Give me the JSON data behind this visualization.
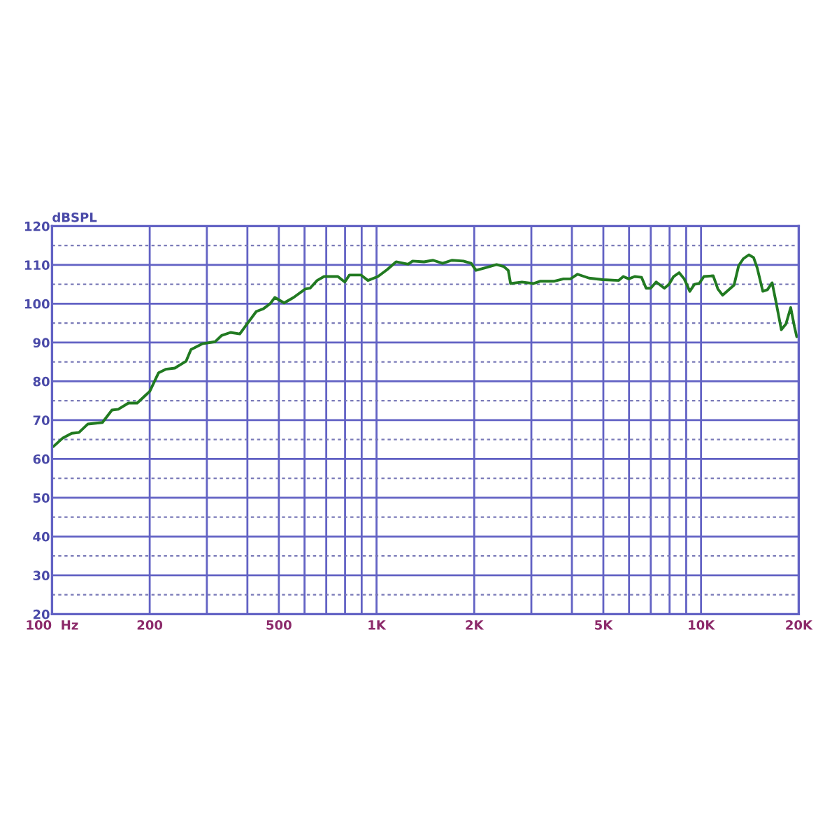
{
  "chart_data": {
    "type": "line",
    "ylabel": "dBSPL",
    "x": [
      101,
      108,
      115,
      121,
      129,
      143,
      153,
      160,
      172,
      183,
      193,
      200,
      213,
      224,
      239,
      259,
      268,
      291,
      318,
      333,
      355,
      379,
      399,
      426,
      448,
      470,
      486,
      519,
      555,
      603,
      624,
      656,
      689,
      760,
      798,
      825,
      895,
      941,
      1010,
      1079,
      1149,
      1251,
      1292,
      1400,
      1494,
      1598,
      1706,
      1852,
      1958,
      2025,
      2150,
      2344,
      2463,
      2546,
      2589,
      2806,
      3041,
      3200,
      3533,
      3768,
      3960,
      4164,
      4516,
      4981,
      5576,
      5760,
      5988,
      6245,
      6558,
      6773,
      6996,
      7273,
      7709,
      7966,
      8232,
      8560,
      8876,
      9234,
      9543,
      9868,
      10200,
      10900,
      11270,
      11650,
      12640,
      13060,
      13500,
      14040,
      14520,
      14900,
      15500,
      16020,
      16560,
      16990,
      17680,
      18270,
      18890,
      19390,
      19720
    ],
    "series": [
      {
        "color": "#217a21",
        "values": [
          63.2,
          65.4,
          66.6,
          66.8,
          69.0,
          69.4,
          72.6,
          72.8,
          74.4,
          74.4,
          76.2,
          77.4,
          82.2,
          83.1,
          83.4,
          85.2,
          88.2,
          89.7,
          90.2,
          91.8,
          92.6,
          92.2,
          94.8,
          98.0,
          98.7,
          100.0,
          101.6,
          100.2,
          101.6,
          103.8,
          104.0,
          106.0,
          107.0,
          107.0,
          105.6,
          107.4,
          107.4,
          106.0,
          107.0,
          108.8,
          110.8,
          110.2,
          111.0,
          110.8,
          111.2,
          110.4,
          111.2,
          111.0,
          110.4,
          108.6,
          109.2,
          110.1,
          109.6,
          108.6,
          105.2,
          105.6,
          105.2,
          105.8,
          105.8,
          106.4,
          106.4,
          107.6,
          106.6,
          106.2,
          106.0,
          107.0,
          106.4,
          107.0,
          106.8,
          104.0,
          104.0,
          105.6,
          104.0,
          105.0,
          107.0,
          108.0,
          106.4,
          103.2,
          105.0,
          105.2,
          107.0,
          107.2,
          103.8,
          102.2,
          104.8,
          109.8,
          111.6,
          112.6,
          111.9,
          109.2,
          103.2,
          103.6,
          105.4,
          100.8,
          93.3,
          94.8,
          99.0,
          94.2,
          91.5
        ]
      }
    ],
    "log": "x",
    "xlim": [
      100,
      20000
    ],
    "ylim": [
      20,
      120
    ],
    "xticks": [
      {
        "value": 100,
        "label": "100  Hz"
      },
      200,
      {
        "value": 300,
        "label": null
      },
      {
        "value": 400,
        "label": null
      },
      500,
      {
        "value": 600,
        "label": null
      },
      {
        "value": 700,
        "label": null
      },
      {
        "value": 800,
        "label": null
      },
      {
        "value": 900,
        "label": null
      },
      {
        "value": 1000,
        "label": "1K"
      },
      {
        "value": 2000,
        "label": "2K"
      },
      {
        "value": 3000,
        "label": null
      },
      {
        "value": 4000,
        "label": null
      },
      {
        "value": 5000,
        "label": "5K"
      },
      {
        "value": 6000,
        "label": null
      },
      {
        "value": 7000,
        "label": null
      },
      {
        "value": 8000,
        "label": null
      },
      {
        "value": 9000,
        "label": null
      },
      {
        "value": 10000,
        "label": "10K"
      },
      {
        "value": 20000,
        "label": "20K"
      }
    ],
    "yticks": [
      20,
      {
        "value": 25,
        "label": null
      },
      30,
      {
        "value": 35,
        "label": null
      },
      40,
      {
        "value": 45,
        "label": null
      },
      50,
      {
        "value": 55,
        "label": null
      },
      60,
      {
        "value": 65,
        "label": null
      },
      70,
      {
        "value": 75,
        "label": null
      },
      80,
      {
        "value": 85,
        "label": null
      },
      90,
      {
        "value": 95,
        "label": null
      },
      100,
      {
        "value": 105,
        "label": null
      },
      110,
      {
        "value": 115,
        "label": null
      },
      120
    ],
    "grid": true,
    "line_style": "solid"
  }
}
